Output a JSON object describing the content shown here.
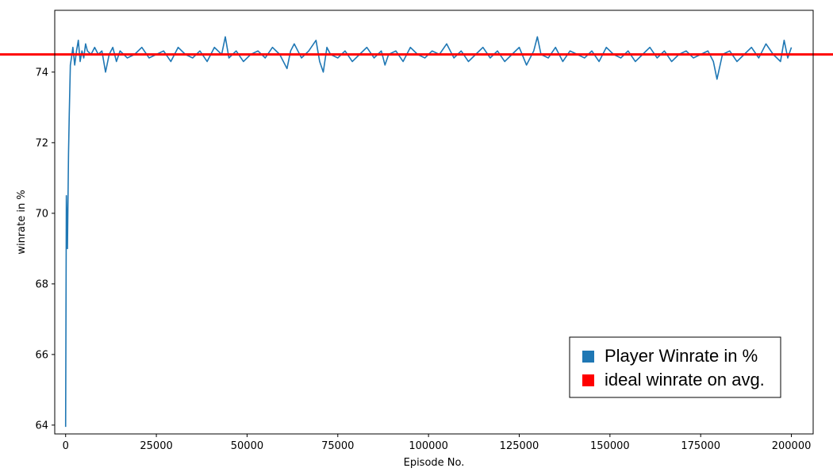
{
  "chart_data": {
    "type": "line",
    "xlabel": "Episode No.",
    "ylabel": "winrate in %",
    "xlim": [
      -3000,
      206000
    ],
    "ylim": [
      63.75,
      75.75
    ],
    "xticks": [
      0,
      25000,
      50000,
      75000,
      100000,
      125000,
      150000,
      175000,
      200000
    ],
    "yticks": [
      64,
      66,
      68,
      70,
      72,
      74
    ],
    "grid": false,
    "legend_position": "bottom-right",
    "series": [
      {
        "name": "Player Winrate in %",
        "color": "#1f77b4",
        "x": [
          0,
          200,
          500,
          800,
          1000,
          1300,
          1600,
          2000,
          2500,
          3000,
          3500,
          4000,
          4500,
          5000,
          5500,
          6000,
          7000,
          8000,
          9000,
          10000,
          11000,
          12000,
          13000,
          14000,
          15000,
          17000,
          19000,
          21000,
          23000,
          25000,
          27000,
          29000,
          31000,
          33000,
          35000,
          37000,
          39000,
          41000,
          43000,
          44000,
          45000,
          47000,
          49000,
          51000,
          53000,
          55000,
          57000,
          59000,
          61000,
          62000,
          63000,
          65000,
          67000,
          69000,
          70000,
          71000,
          72000,
          73000,
          75000,
          77000,
          79000,
          81000,
          83000,
          85000,
          87000,
          88000,
          89000,
          91000,
          93000,
          95000,
          97000,
          99000,
          101000,
          103000,
          105000,
          107000,
          109000,
          111000,
          113000,
          115000,
          117000,
          119000,
          121000,
          123000,
          125000,
          127000,
          129000,
          130000,
          131000,
          133000,
          135000,
          137000,
          139000,
          141000,
          143000,
          145000,
          147000,
          149000,
          151000,
          153000,
          155000,
          157000,
          159000,
          161000,
          163000,
          165000,
          167000,
          169000,
          171000,
          173000,
          175000,
          177000,
          178500,
          179500,
          181000,
          183000,
          185000,
          187000,
          189000,
          191000,
          193000,
          195000,
          197000,
          198000,
          199000,
          200000
        ],
        "y": [
          63.95,
          70.5,
          69.0,
          71.7,
          72.8,
          74.2,
          74.4,
          74.7,
          74.2,
          74.6,
          74.9,
          74.3,
          74.6,
          74.4,
          74.8,
          74.6,
          74.5,
          74.7,
          74.5,
          74.6,
          74.0,
          74.5,
          74.7,
          74.3,
          74.6,
          74.4,
          74.5,
          74.7,
          74.4,
          74.5,
          74.6,
          74.3,
          74.7,
          74.5,
          74.4,
          74.6,
          74.3,
          74.7,
          74.5,
          75.0,
          74.4,
          74.6,
          74.3,
          74.5,
          74.6,
          74.4,
          74.7,
          74.5,
          74.1,
          74.6,
          74.8,
          74.4,
          74.6,
          74.9,
          74.3,
          74.0,
          74.7,
          74.5,
          74.4,
          74.6,
          74.3,
          74.5,
          74.7,
          74.4,
          74.6,
          74.2,
          74.5,
          74.6,
          74.3,
          74.7,
          74.5,
          74.4,
          74.6,
          74.5,
          74.8,
          74.4,
          74.6,
          74.3,
          74.5,
          74.7,
          74.4,
          74.6,
          74.3,
          74.5,
          74.7,
          74.2,
          74.6,
          75.0,
          74.5,
          74.4,
          74.7,
          74.3,
          74.6,
          74.5,
          74.4,
          74.6,
          74.3,
          74.7,
          74.5,
          74.4,
          74.6,
          74.3,
          74.5,
          74.7,
          74.4,
          74.6,
          74.3,
          74.5,
          74.6,
          74.4,
          74.5,
          74.6,
          74.3,
          73.8,
          74.5,
          74.6,
          74.3,
          74.5,
          74.7,
          74.4,
          74.8,
          74.5,
          74.3,
          74.9,
          74.4,
          74.7
        ]
      },
      {
        "name": "ideal winrate on avg.",
        "color": "#ff0000",
        "y_constant": 74.5
      }
    ]
  }
}
